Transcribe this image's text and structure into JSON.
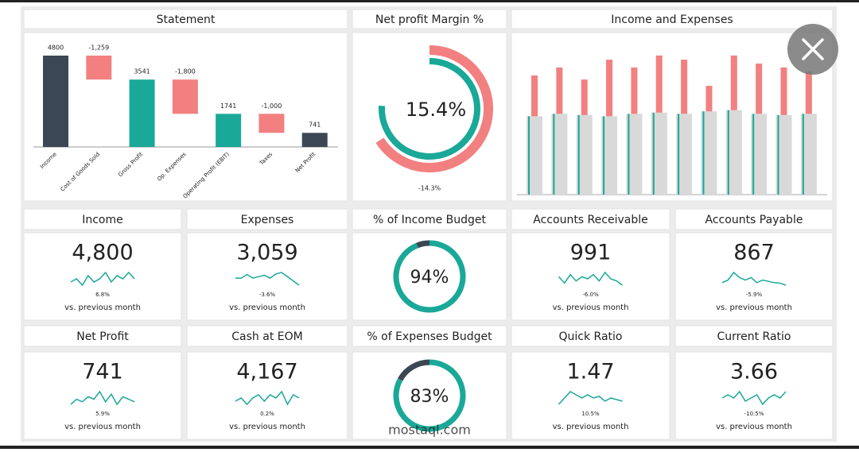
{
  "statement": {
    "title": "Statement",
    "categories": [
      "Income",
      "Cost of Goods Sold",
      "Gross Profit",
      "Op. Expenses",
      "Operating Profit (EBIT)",
      "Taxes",
      "Net Profit"
    ],
    "values": [
      4800,
      -1259,
      3541,
      -1800,
      1741,
      -1000,
      741
    ],
    "value_labels": [
      "4800",
      "-1,259",
      "3541",
      "-1,800",
      "1741",
      "-1,000",
      "741"
    ],
    "totals": [
      true,
      false,
      true,
      false,
      true,
      false,
      true
    ],
    "colors": [
      "#3b4754",
      "#f28080",
      "#1aa898",
      "#f28080",
      "#1aa898",
      "#f28080",
      "#3b4754"
    ],
    "ylim": [
      0,
      5000
    ]
  },
  "net_profit_margin": {
    "title": "Net profit Margin %",
    "label": "15.4%",
    "change": "-14.3%"
  },
  "income_expenses": {
    "title": "Income and Expenses",
    "ylim": [
      0,
      6000
    ],
    "series": [
      {
        "color": "#d9d9d9",
        "values": [
          3200,
          3300,
          3250,
          3200,
          3300,
          3350,
          3300,
          3400,
          3450,
          3300,
          3250,
          3300
        ]
      },
      {
        "color": "#f28080",
        "values": [
          4865,
          5190,
          4700,
          5510,
          5190,
          5680,
          5510,
          4440,
          5680,
          5350,
          5190,
          5030
        ]
      }
    ]
  },
  "kpis": [
    {
      "title": "Income",
      "value": "4,800",
      "change": "6.8%",
      "note": "vs. previous month",
      "color": "#1aa898",
      "spark": [
        5,
        6,
        4,
        7,
        5,
        6,
        8,
        5,
        7,
        6,
        8,
        6
      ]
    },
    {
      "title": "Expenses",
      "value": "3,059",
      "change": "-3.6%",
      "note": "vs. previous month",
      "color": "#f28080",
      "spark": [
        5,
        5,
        5.5,
        5,
        5.2,
        5.4,
        5,
        5.6,
        5.8,
        5.2,
        4.6,
        4
      ]
    },
    {
      "title": "Accounts Receivable",
      "value": "991",
      "change": "-6.0%",
      "note": "vs. previous month",
      "color": "#f28080",
      "spark": [
        6,
        3,
        7,
        4,
        6,
        5,
        7,
        4,
        8,
        5,
        4,
        2
      ]
    },
    {
      "title": "Accounts Payable",
      "value": "867",
      "change": "-5.9%",
      "note": "vs. previous month",
      "color": "#f28080",
      "spark": [
        4,
        5,
        8,
        6,
        5,
        6,
        4,
        5,
        4.5,
        4,
        3.8,
        3
      ]
    },
    {
      "title": "Net Profit",
      "value": "741",
      "change": "5.9%",
      "note": "vs. previous month",
      "color": "#1aa898",
      "spark": [
        3,
        5,
        4,
        6,
        5,
        8,
        4,
        7,
        3,
        6,
        5,
        4
      ]
    },
    {
      "title": "Cash at EOM",
      "value": "4,167",
      "change": "0.2%",
      "note": "vs. previous month",
      "color": "#f28080",
      "spark": [
        4,
        5,
        3,
        5,
        6,
        4,
        6,
        5,
        7,
        3,
        6,
        5
      ]
    },
    {
      "title": "Quick Ratio",
      "value": "1.47",
      "change": "10.5%",
      "note": "vs. previous month",
      "color": "#1aa898",
      "spark": [
        3,
        5,
        7,
        6,
        5,
        6,
        5,
        5.5,
        4,
        5,
        4.5,
        4
      ]
    },
    {
      "title": "Current Ratio",
      "value": "3.66",
      "change": "-10.5%",
      "note": "vs. previous month",
      "color": "#f28080",
      "spark": [
        5,
        6,
        5,
        7,
        4,
        5,
        6,
        3,
        5,
        6,
        5,
        7
      ]
    }
  ],
  "gauges": [
    {
      "title": "% of Income Budget",
      "value": 94,
      "label": "94%"
    },
    {
      "title": "% of Expenses Budget",
      "value": 83,
      "label": "83%"
    }
  ],
  "watermark": "mostaql.com"
}
